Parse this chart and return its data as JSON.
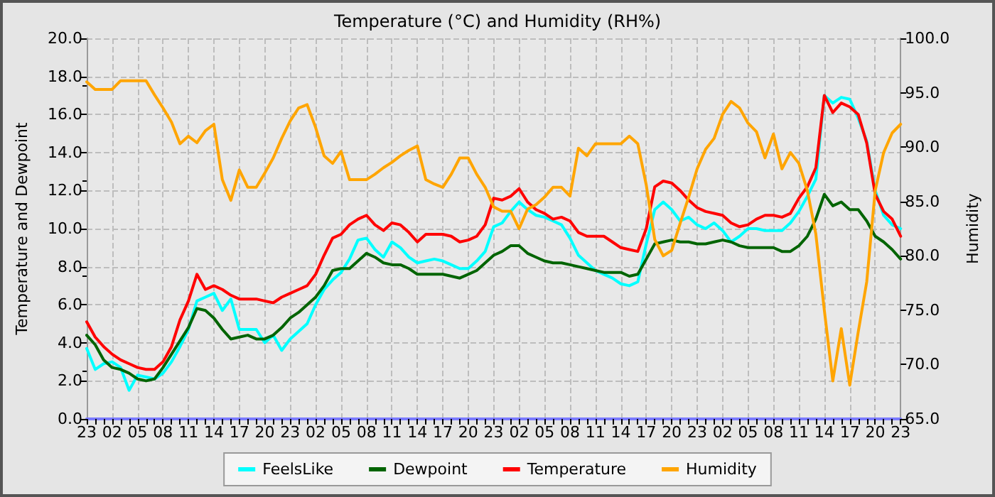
{
  "chart_data": {
    "type": "line",
    "title": "Temperature (°C) and Humidity (RH%)",
    "ylabel": "Temperature and Dewpoint",
    "y2label": "Humidity",
    "categories": [
      "23",
      null,
      null,
      "02",
      null,
      null,
      "05",
      null,
      null,
      "08",
      null,
      null,
      "11",
      null,
      null,
      "14",
      null,
      null,
      "17",
      null,
      null,
      "20",
      null,
      null,
      "23",
      null,
      null,
      "02",
      null,
      null,
      "05",
      null,
      null,
      "08",
      null,
      null,
      "11",
      null,
      null,
      "14",
      null,
      null,
      "17",
      null,
      null,
      "20",
      null,
      null,
      "23",
      null,
      null,
      "02",
      null,
      null,
      "05",
      null,
      null,
      "08",
      null,
      null,
      "11",
      null,
      null,
      "14",
      null,
      null,
      "17",
      null,
      null,
      "20",
      null,
      null,
      "23",
      null,
      null,
      "02",
      null,
      null,
      "05",
      null,
      null,
      "08",
      null,
      null,
      "11",
      null,
      null,
      "14",
      null,
      null,
      "17",
      null,
      null,
      "20",
      null,
      null,
      "23"
    ],
    "ylim": [
      0,
      20
    ],
    "yticks": [
      {
        "value": 0,
        "label": "0.0"
      },
      {
        "value": 2,
        "label": "2.0"
      },
      {
        "value": 4,
        "label": "4.0"
      },
      {
        "value": 6,
        "label": "6.0"
      },
      {
        "value": 8,
        "label": "8.0"
      },
      {
        "value": 10,
        "label": "10.0"
      },
      {
        "value": 12,
        "label": "12.0"
      },
      {
        "value": 14,
        "label": "14.0"
      },
      {
        "value": 16,
        "label": "16.0"
      },
      {
        "value": 18,
        "label": "18.0"
      },
      {
        "value": 20,
        "label": "20.0"
      }
    ],
    "y2lim": [
      65,
      100
    ],
    "y2ticks": [
      {
        "value": 65,
        "label": "65.0"
      },
      {
        "value": 70,
        "label": "70.0"
      },
      {
        "value": 75,
        "label": "75.0"
      },
      {
        "value": 80,
        "label": "80.0"
      },
      {
        "value": 85,
        "label": "85.0"
      },
      {
        "value": 90,
        "label": "90.0"
      },
      {
        "value": 95,
        "label": "95.0"
      },
      {
        "value": 100,
        "label": "100.0"
      }
    ],
    "grid": true,
    "legend": "bottom",
    "marker": "none",
    "line_style": "solid",
    "series": [
      {
        "name": "FeelsLike",
        "color": "#00ffff",
        "values": [
          3.7,
          2.6,
          2.9,
          3.0,
          2.7,
          1.5,
          2.3,
          2.2,
          2.1,
          2.4,
          3.0,
          3.8,
          4.7,
          6.2,
          6.4,
          6.6,
          5.7,
          6.3,
          4.7,
          4.7,
          4.7,
          4.0,
          4.4,
          3.6,
          4.2,
          4.6,
          5.0,
          6.0,
          6.8,
          7.3,
          7.7,
          8.4,
          9.4,
          9.5,
          8.9,
          8.5,
          9.3,
          9.0,
          8.5,
          8.2,
          8.3,
          8.4,
          8.3,
          8.1,
          7.9,
          7.9,
          8.3,
          8.8,
          10.1,
          10.3,
          10.9,
          11.4,
          11.0,
          10.7,
          10.6,
          10.4,
          10.2,
          9.5,
          8.6,
          8.2,
          7.8,
          7.6,
          7.4,
          7.1,
          7.0,
          7.2,
          9.2,
          11.0,
          11.4,
          11.0,
          10.4,
          10.6,
          10.2,
          10.0,
          10.3,
          9.9,
          9.3,
          9.6,
          10.0,
          10.0,
          9.9,
          9.9,
          9.9,
          10.3,
          10.9,
          11.7,
          12.6,
          17.0,
          16.6,
          16.9,
          16.8,
          15.8,
          14.6,
          12.0,
          10.7,
          10.2,
          10.0
        ]
      },
      {
        "name": "Dewpoint",
        "color": "#006400",
        "values": [
          4.4,
          3.9,
          3.1,
          2.7,
          2.6,
          2.4,
          2.1,
          2.0,
          2.1,
          2.7,
          3.4,
          4.1,
          4.8,
          5.8,
          5.7,
          5.3,
          4.7,
          4.2,
          4.3,
          4.4,
          4.2,
          4.2,
          4.4,
          4.8,
          5.3,
          5.6,
          6.0,
          6.4,
          7.0,
          7.8,
          7.9,
          7.9,
          8.3,
          8.7,
          8.5,
          8.2,
          8.1,
          8.1,
          7.9,
          7.6,
          7.6,
          7.6,
          7.6,
          7.5,
          7.4,
          7.6,
          7.8,
          8.2,
          8.6,
          8.8,
          9.1,
          9.1,
          8.7,
          8.5,
          8.3,
          8.2,
          8.2,
          8.1,
          8.0,
          7.9,
          7.8,
          7.7,
          7.7,
          7.7,
          7.5,
          7.6,
          8.4,
          9.2,
          9.3,
          9.4,
          9.3,
          9.3,
          9.2,
          9.2,
          9.3,
          9.4,
          9.3,
          9.1,
          9.0,
          9.0,
          9.0,
          9.0,
          8.8,
          8.8,
          9.1,
          9.6,
          10.5,
          11.8,
          11.2,
          11.4,
          11.0,
          11.0,
          10.4,
          9.6,
          9.3,
          8.9,
          8.4
        ]
      },
      {
        "name": "Temperature",
        "color": "#ff0000",
        "values": [
          5.1,
          4.3,
          3.8,
          3.4,
          3.1,
          2.9,
          2.7,
          2.6,
          2.6,
          3.0,
          3.8,
          5.2,
          6.2,
          7.6,
          6.8,
          7.0,
          6.8,
          6.5,
          6.3,
          6.3,
          6.3,
          6.2,
          6.1,
          6.4,
          6.6,
          6.8,
          7.0,
          7.6,
          8.6,
          9.5,
          9.7,
          10.2,
          10.5,
          10.7,
          10.2,
          9.9,
          10.3,
          10.2,
          9.8,
          9.3,
          9.7,
          9.7,
          9.7,
          9.6,
          9.3,
          9.4,
          9.6,
          10.2,
          11.6,
          11.5,
          11.7,
          12.1,
          11.4,
          11.0,
          10.8,
          10.5,
          10.6,
          10.4,
          9.8,
          9.6,
          9.6,
          9.6,
          9.3,
          9.0,
          8.9,
          8.8,
          10.0,
          12.2,
          12.5,
          12.4,
          12.0,
          11.5,
          11.1,
          10.9,
          10.8,
          10.7,
          10.3,
          10.1,
          10.2,
          10.5,
          10.7,
          10.7,
          10.6,
          10.8,
          11.6,
          12.2,
          13.2,
          17.0,
          16.1,
          16.6,
          16.4,
          16.0,
          14.5,
          11.8,
          10.9,
          10.5,
          9.6
        ]
      },
      {
        "name": "Humidity",
        "color": "#ffa500",
        "axis": "y2",
        "values": [
          96.0,
          95.3,
          95.3,
          95.3,
          96.1,
          96.1,
          96.1,
          96.1,
          94.8,
          93.6,
          92.3,
          90.3,
          91.0,
          90.4,
          91.5,
          92.1,
          87.0,
          85.1,
          87.9,
          86.3,
          86.3,
          87.6,
          89.0,
          90.8,
          92.4,
          93.6,
          93.9,
          91.8,
          89.2,
          88.5,
          89.6,
          87.0,
          87.0,
          87.0,
          87.5,
          88.1,
          88.6,
          89.2,
          89.7,
          90.1,
          87.0,
          86.6,
          86.3,
          87.5,
          89.0,
          89.0,
          87.5,
          86.3,
          84.5,
          84.1,
          84.1,
          82.5,
          84.3,
          84.7,
          85.4,
          86.3,
          86.3,
          85.5,
          89.9,
          89.2,
          90.3,
          90.3,
          90.3,
          90.3,
          91.0,
          90.3,
          86.5,
          81.5,
          80.0,
          80.5,
          83.0,
          85.4,
          88.0,
          89.8,
          90.8,
          93.0,
          94.2,
          93.6,
          92.2,
          91.4,
          89.0,
          91.2,
          88.0,
          89.5,
          88.5,
          86.0,
          82.0,
          75.0,
          68.5,
          73.3,
          68.1,
          73.0,
          77.6,
          86.0,
          89.5,
          91.3,
          92.1
        ]
      }
    ]
  }
}
